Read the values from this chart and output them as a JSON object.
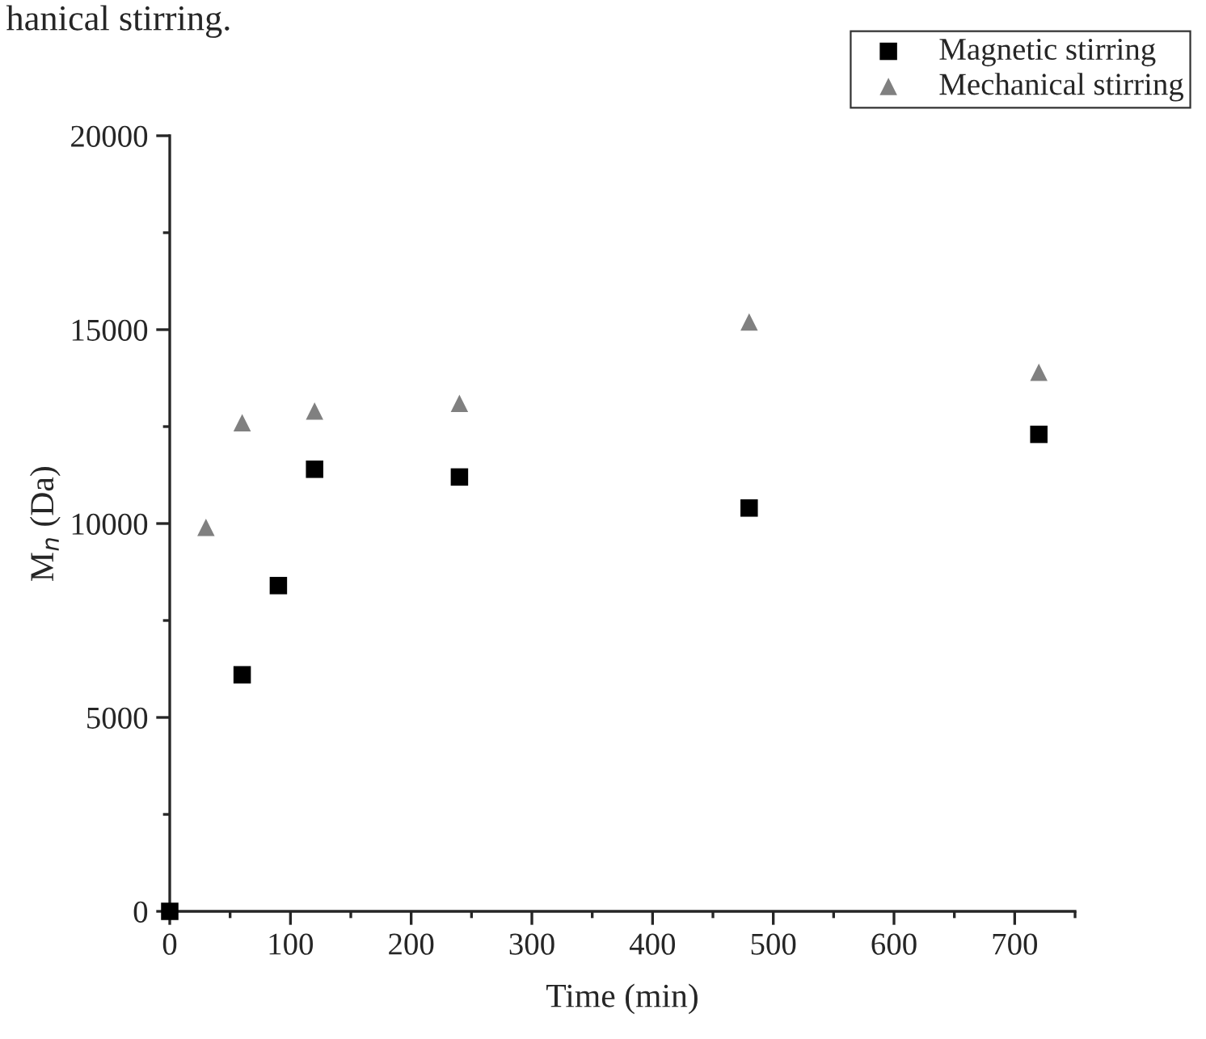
{
  "chart_data": {
    "type": "scatter",
    "xlabel": "Time (min)",
    "ylabel": "M$_{n}$ (Da)",
    "annotations": [
      "hanical stirring."
    ],
    "xlim": [
      0,
      750
    ],
    "xticks": [
      0,
      100,
      200,
      300,
      400,
      500,
      600,
      700
    ],
    "ylim": [
      0,
      20000
    ],
    "yticks": [
      0,
      5000,
      10000,
      15000,
      20000
    ],
    "grid": false,
    "legend": "top right",
    "series": [
      {
        "name": "Magnetic stirring",
        "color": "#000000",
        "marker": "square",
        "x": [
          0,
          60,
          90,
          120,
          240,
          480,
          720
        ],
        "values": [
          0,
          6100,
          8400,
          11400,
          11200,
          10400,
          12300
        ]
      },
      {
        "name": "Mechanical stirring",
        "color": "#808080",
        "marker": "triangle",
        "x": [
          30,
          60,
          120,
          240,
          480,
          720
        ],
        "values": [
          9900,
          12600,
          12900,
          13100,
          15200,
          13900
        ]
      }
    ]
  }
}
